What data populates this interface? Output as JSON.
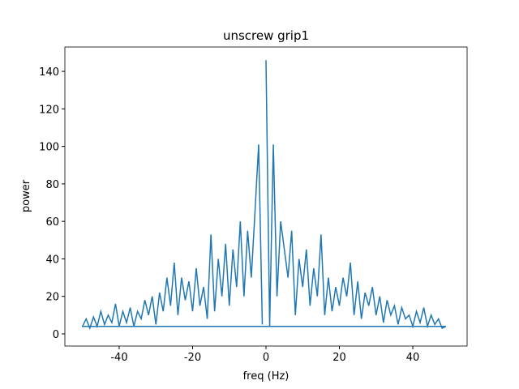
{
  "chart_data": {
    "type": "line",
    "title": "unscrew grip1",
    "x_label": "freq (Hz)",
    "y_label": "power",
    "x": [
      0,
      1,
      2,
      3,
      4,
      5,
      6,
      7,
      8,
      9,
      10,
      11,
      12,
      13,
      14,
      15,
      16,
      17,
      18,
      19,
      20,
      21,
      22,
      23,
      24,
      25,
      26,
      27,
      28,
      29,
      30,
      31,
      32,
      33,
      34,
      35,
      36,
      37,
      38,
      39,
      40,
      41,
      42,
      43,
      44,
      45,
      46,
      47,
      48,
      49,
      -50,
      -49,
      -48,
      -47,
      -46,
      -45,
      -44,
      -43,
      -42,
      -41,
      -40,
      -39,
      -38,
      -37,
      -36,
      -35,
      -34,
      -33,
      -32,
      -31,
      -30,
      -29,
      -28,
      -27,
      -26,
      -25,
      -24,
      -23,
      -22,
      -21,
      -20,
      -19,
      -18,
      -17,
      -16,
      -15,
      -14,
      -13,
      -12,
      -11,
      -10,
      -9,
      -8,
      -7,
      -6,
      -5,
      -4,
      -3,
      -2,
      -1
    ],
    "series": [
      {
        "name": "power",
        "color": "#1f77b4",
        "values": [
          146,
          4,
          101,
          20,
          60,
          45,
          30,
          55,
          10,
          40,
          25,
          45,
          15,
          35,
          20,
          53,
          10,
          30,
          12,
          25,
          15,
          30,
          20,
          38,
          10,
          28,
          8,
          22,
          15,
          25,
          10,
          20,
          6,
          18,
          10,
          15,
          5,
          14,
          8,
          10,
          4,
          12,
          6,
          14,
          4,
          10,
          5,
          8,
          3,
          4,
          4,
          8,
          3,
          9,
          4,
          12,
          5,
          10,
          6,
          16,
          4,
          12,
          6,
          14,
          4,
          12,
          8,
          18,
          10,
          20,
          5,
          22,
          12,
          30,
          15,
          38,
          10,
          30,
          18,
          28,
          12,
          35,
          15,
          25,
          8,
          53,
          12,
          40,
          20,
          48,
          15,
          45,
          25,
          60,
          20,
          55,
          30,
          65,
          101,
          5
        ]
      }
    ],
    "xlim": [
      -54.8,
      54.8
    ],
    "ylim": [
      -6.5,
      153
    ],
    "xticks": [
      -40,
      -20,
      0,
      20,
      40
    ],
    "yticks": [
      0,
      20,
      40,
      60,
      80,
      100,
      120,
      140
    ]
  }
}
